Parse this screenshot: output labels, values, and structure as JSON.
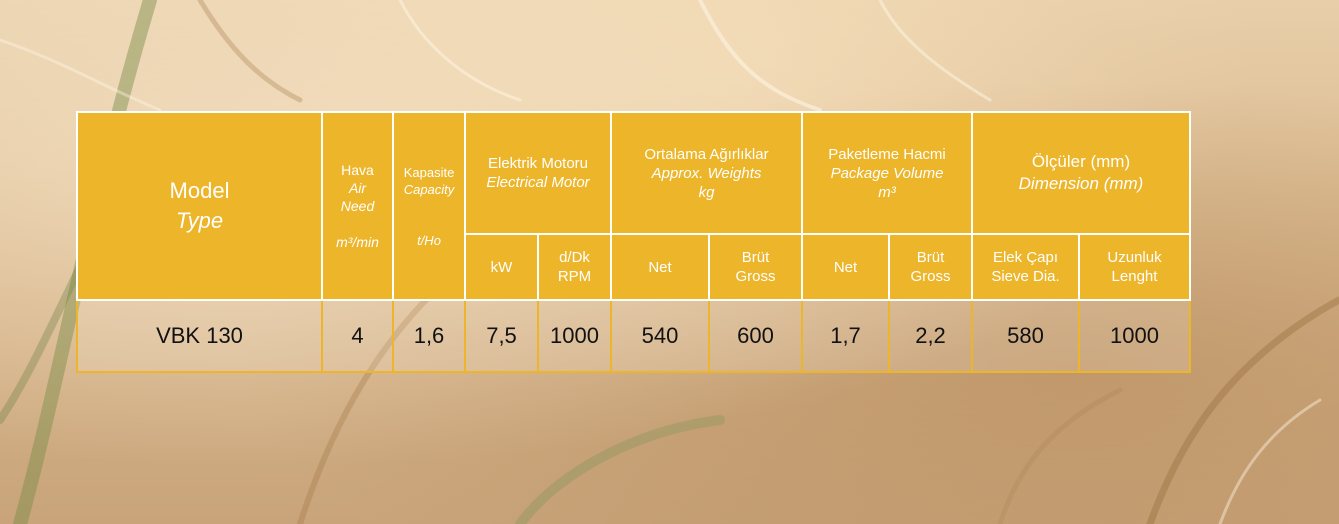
{
  "table": {
    "headers": {
      "model": {
        "tr": "Model",
        "en": "Type"
      },
      "air": {
        "tr": "Hava",
        "en1": "Air",
        "en2": "Need",
        "unit": "m³/min"
      },
      "capacity": {
        "tr": "Kapasite",
        "en": "Capacity",
        "unit": "t/Ho"
      },
      "motor": {
        "tr": "Elektrik Motoru",
        "en": "Electrical Motor",
        "sub_kw": "kW",
        "sub_rpm_tr": "d/Dk",
        "sub_rpm_en": "RPM"
      },
      "weights": {
        "tr": "Ortalama Ağırlıklar",
        "en": "Approx. Weights",
        "unit": "kg",
        "sub_net": "Net",
        "sub_gross_tr": "Brüt",
        "sub_gross_en": "Gross"
      },
      "volume": {
        "tr": "Paketleme Hacmi",
        "en": "Package Volume",
        "unit": "m³",
        "sub_net": "Net",
        "sub_gross_tr": "Brüt",
        "sub_gross_en": "Gross"
      },
      "dimensions": {
        "tr": "Ölçüler (mm)",
        "en": "Dimension (mm)",
        "sub_sieve_tr": "Elek Çapı",
        "sub_sieve_en": "Sieve Dia.",
        "sub_length_tr": "Uzunluk",
        "sub_length_en": "Lenght"
      }
    },
    "rows": [
      {
        "model": "VBK 130",
        "air": "4",
        "capacity": "1,6",
        "kw": "7,5",
        "rpm": "1000",
        "weight_net": "540",
        "weight_gross": "600",
        "volume_net": "1,7",
        "volume_gross": "2,2",
        "sieve_dia": "580",
        "length": "1000"
      }
    ]
  },
  "colors": {
    "header_bg": "#ecb52a",
    "header_text": "#ffffff",
    "cell_border": "#ecb52a",
    "background": "wheat-field"
  }
}
